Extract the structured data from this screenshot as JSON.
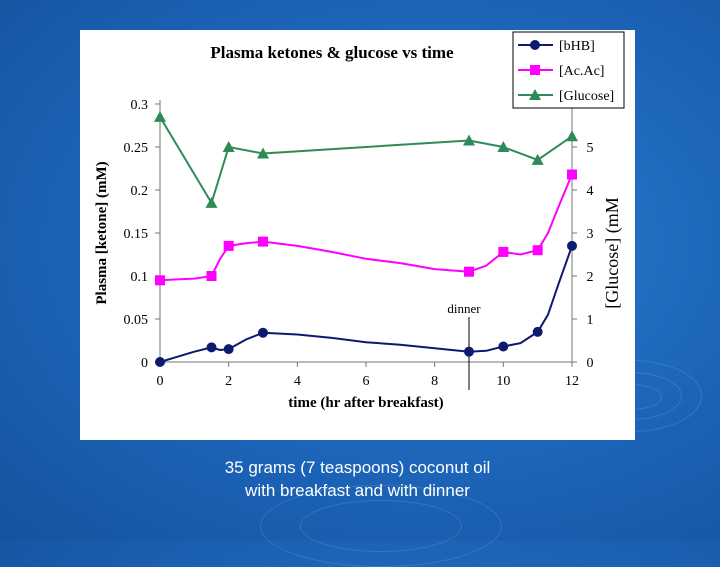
{
  "chart_data": {
    "type": "line",
    "title": "Plasma ketones & glucose vs time",
    "xlabel": "time (hr after breakfast)",
    "ylabel": "Plasma [ketone] (mM)",
    "y2label": "[Glucose] (mM",
    "xlim": [
      0,
      12
    ],
    "ylim": [
      0,
      0.3
    ],
    "y2lim": [
      0,
      6
    ],
    "x_ticks": [
      0,
      2,
      4,
      6,
      8,
      10,
      12
    ],
    "y_ticks": [
      0,
      0.05,
      0.1,
      0.15,
      0.2,
      0.25,
      0.3
    ],
    "y_tick_labels": [
      "0",
      "0.05",
      "0.1",
      "0.15",
      "0.2",
      "0.25",
      "0.3"
    ],
    "y2_ticks": [
      0,
      1,
      2,
      3,
      4,
      5
    ],
    "grid": false,
    "legend_position": "top-right",
    "annotation": {
      "text": "dinner",
      "x": 9
    },
    "series": [
      {
        "name": "[bHB]",
        "axis": "left",
        "color": "#0d1a6e",
        "marker": "circle",
        "x": [
          0,
          1.5,
          2,
          3,
          9,
          10,
          11,
          12
        ],
        "y": [
          0.0,
          0.017,
          0.015,
          0.034,
          0.012,
          0.018,
          0.035,
          0.135
        ],
        "curve": [
          [
            0,
            0
          ],
          [
            0.5,
            0.006
          ],
          [
            1,
            0.012
          ],
          [
            1.5,
            0.017
          ],
          [
            1.75,
            0.014
          ],
          [
            2,
            0.015
          ],
          [
            2.5,
            0.026
          ],
          [
            3,
            0.034
          ],
          [
            3.5,
            0.033
          ],
          [
            4,
            0.032
          ],
          [
            5,
            0.028
          ],
          [
            6,
            0.023
          ],
          [
            7,
            0.02
          ],
          [
            8,
            0.016
          ],
          [
            9,
            0.012
          ],
          [
            9.5,
            0.013
          ],
          [
            10,
            0.018
          ],
          [
            10.5,
            0.022
          ],
          [
            11,
            0.035
          ],
          [
            11.3,
            0.055
          ],
          [
            11.6,
            0.09
          ],
          [
            12,
            0.135
          ]
        ]
      },
      {
        "name": "[Ac.Ac]",
        "axis": "left",
        "color": "#ff00ff",
        "marker": "square",
        "x": [
          0,
          1.5,
          2,
          3,
          9,
          10,
          11,
          12
        ],
        "y": [
          0.095,
          0.1,
          0.135,
          0.14,
          0.105,
          0.128,
          0.13,
          0.218
        ],
        "curve": [
          [
            0,
            0.095
          ],
          [
            0.5,
            0.096
          ],
          [
            1,
            0.097
          ],
          [
            1.5,
            0.1
          ],
          [
            1.75,
            0.12
          ],
          [
            2,
            0.135
          ],
          [
            2.5,
            0.138
          ],
          [
            3,
            0.14
          ],
          [
            4,
            0.135
          ],
          [
            5,
            0.128
          ],
          [
            6,
            0.12
          ],
          [
            7,
            0.115
          ],
          [
            8,
            0.108
          ],
          [
            9,
            0.105
          ],
          [
            9.5,
            0.112
          ],
          [
            10,
            0.128
          ],
          [
            10.5,
            0.125
          ],
          [
            11,
            0.13
          ],
          [
            11.3,
            0.15
          ],
          [
            11.6,
            0.18
          ],
          [
            12,
            0.218
          ]
        ]
      },
      {
        "name": "[Glucose]",
        "axis": "right",
        "color": "#2e8b57",
        "marker": "triangle",
        "x": [
          0,
          1.5,
          2,
          3,
          9,
          10,
          11,
          12
        ],
        "y": [
          5.7,
          3.7,
          5.0,
          4.85,
          5.15,
          5.0,
          4.7,
          5.25
        ],
        "curve": [
          [
            0,
            5.7
          ],
          [
            1.5,
            3.7
          ],
          [
            2,
            5.0
          ],
          [
            3,
            4.85
          ],
          [
            9,
            5.15
          ],
          [
            10,
            5.0
          ],
          [
            11,
            4.7
          ],
          [
            12,
            5.25
          ]
        ]
      }
    ]
  },
  "caption": {
    "line1": "35 grams (7 teaspoons) coconut oil",
    "line2": "with breakfast and with dinner"
  }
}
